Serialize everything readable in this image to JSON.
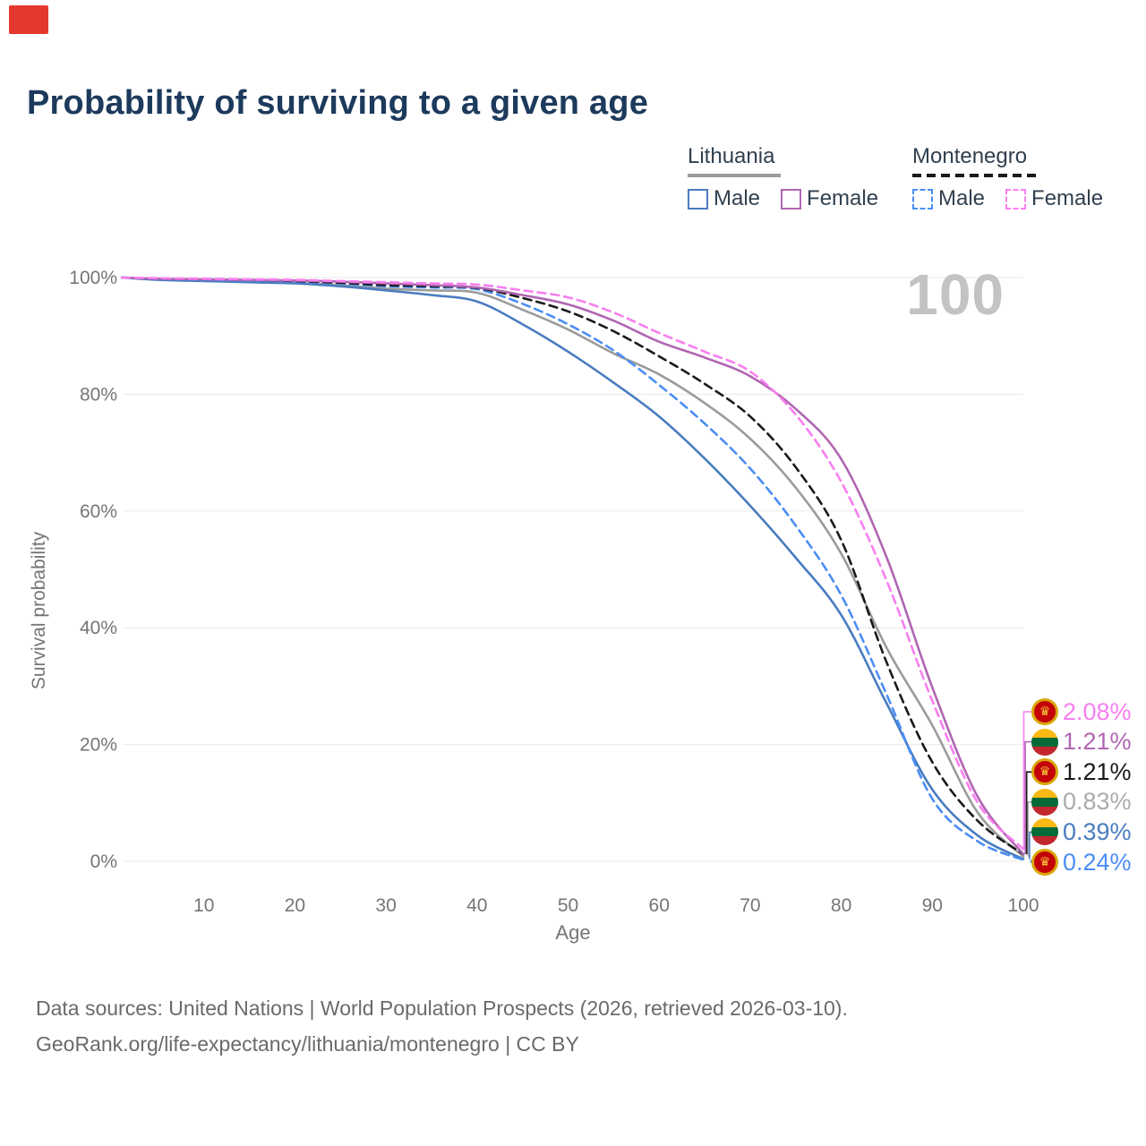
{
  "title": "Probability of surviving to a given age",
  "marker_color": "#e4382e",
  "watermark": "100",
  "legend": {
    "groups": [
      {
        "name": "Lithuania",
        "line_style": "solid",
        "underline_color": "#9b9b9b",
        "items": [
          {
            "label": "Male",
            "color": "#4a7cc0",
            "dashed": false
          },
          {
            "label": "Female",
            "color": "#b066b2",
            "dashed": false
          }
        ]
      },
      {
        "name": "Montenegro",
        "line_style": "dashed",
        "underline_color": "#1a1a1a",
        "items": [
          {
            "label": "Male",
            "color": "#4b8df6",
            "dashed": true
          },
          {
            "label": "Female",
            "color": "#f97ef0",
            "dashed": true
          }
        ]
      }
    ]
  },
  "axes": {
    "y_label": "Survival probability",
    "x_label": "Age",
    "y_ticks": [
      {
        "label": "100%",
        "value": 100
      },
      {
        "label": "80%",
        "value": 80
      },
      {
        "label": "60%",
        "value": 60
      },
      {
        "label": "40%",
        "value": 40
      },
      {
        "label": "20%",
        "value": 20
      },
      {
        "label": "0%",
        "value": 0
      }
    ],
    "x_ticks": [
      {
        "label": "10",
        "value": 10
      },
      {
        "label": "20",
        "value": 20
      },
      {
        "label": "30",
        "value": 30
      },
      {
        "label": "40",
        "value": 40
      },
      {
        "label": "50",
        "value": 50
      },
      {
        "label": "60",
        "value": 60
      },
      {
        "label": "70",
        "value": 70
      },
      {
        "label": "80",
        "value": 80
      },
      {
        "label": "90",
        "value": 90
      },
      {
        "label": "100",
        "value": 100
      }
    ]
  },
  "chart_data": {
    "type": "line",
    "title": "Probability of surviving to a given age",
    "xlabel": "Age",
    "ylabel": "Survival probability",
    "xlim": [
      0,
      100
    ],
    "ylim": [
      0,
      100
    ],
    "grid": "horizontal",
    "legend_position": "top-right",
    "hovered_age": 100,
    "x": [
      1,
      5,
      10,
      15,
      20,
      25,
      30,
      35,
      40,
      45,
      50,
      55,
      60,
      65,
      70,
      75,
      80,
      85,
      90,
      95,
      100
    ],
    "series": [
      {
        "name": "Lithuania Male",
        "color": "#4a7cc0",
        "dash": false,
        "values": [
          100,
          99.6,
          99.4,
          99.2,
          99.0,
          98.5,
          97.8,
          97.0,
          95.9,
          92.0,
          87.3,
          82.0,
          76.2,
          69.0,
          60.9,
          52.0,
          42.2,
          27.0,
          12.3,
          4.4,
          0.39
        ],
        "end_label": "0.39%"
      },
      {
        "name": "Lithuania Female",
        "color": "#b066b2",
        "dash": false,
        "values": [
          100,
          99.8,
          99.7,
          99.6,
          99.5,
          99.3,
          99.0,
          98.7,
          98.3,
          97.0,
          95.4,
          92.6,
          89.0,
          86.3,
          83.1,
          77.5,
          68.9,
          52.0,
          29.8,
          11.0,
          1.21
        ],
        "end_label": "1.21%"
      },
      {
        "name": "Lithuania Both sexes",
        "color": "#9b9b9b",
        "dash": false,
        "values": [
          100,
          99.7,
          99.5,
          99.3,
          99.1,
          98.7,
          98.1,
          97.8,
          97.4,
          94.5,
          91.1,
          87.0,
          83.4,
          78.5,
          72.4,
          64.0,
          52.7,
          36.5,
          23.3,
          8.3,
          0.83
        ],
        "end_label": "0.83%"
      },
      {
        "name": "Montenegro Male",
        "color": "#4b8df6",
        "dash": true,
        "values": [
          100,
          99.8,
          99.6,
          99.5,
          99.3,
          99.0,
          98.5,
          98.3,
          98.0,
          95.5,
          92.0,
          87.5,
          81.6,
          75.0,
          67.3,
          57.5,
          45.6,
          28.5,
          10.7,
          3.4,
          0.24
        ],
        "end_label": "0.24%"
      },
      {
        "name": "Montenegro Female",
        "color": "#f97ef0",
        "dash": true,
        "values": [
          100,
          99.9,
          99.8,
          99.7,
          99.6,
          99.4,
          99.2,
          99.0,
          98.8,
          97.8,
          96.6,
          94.0,
          90.5,
          87.3,
          83.9,
          76.5,
          65.0,
          48.0,
          27.5,
          10.0,
          2.08
        ],
        "end_label": "2.08%"
      },
      {
        "name": "Montenegro Both sexes",
        "color": "#1a1a1a",
        "dash": true,
        "values": [
          100,
          99.8,
          99.7,
          99.6,
          99.4,
          99.1,
          98.7,
          98.5,
          98.2,
          96.5,
          94.2,
          90.8,
          86.5,
          81.8,
          76.2,
          67.5,
          55.0,
          34.0,
          17.0,
          6.9,
          1.21
        ],
        "end_label": "1.21%"
      }
    ]
  },
  "end_labels": [
    {
      "text": "2.08%",
      "color": "#f97ef0",
      "flag": "montenegro",
      "series": "Montenegro Female",
      "end_value": 2.08
    },
    {
      "text": "1.21%",
      "color": "#b066b2",
      "flag": "lithuania",
      "series": "Lithuania Female",
      "end_value": 1.21
    },
    {
      "text": "1.21%",
      "color": "#1a1a1a",
      "flag": "montenegro",
      "series": "Montenegro Both sexes",
      "end_value": 1.21
    },
    {
      "text": "0.83%",
      "color": "#ababab",
      "flag": "lithuania",
      "series": "Lithuania Both sexes",
      "end_value": 0.83
    },
    {
      "text": "0.39%",
      "color": "#4a7cc0",
      "flag": "lithuania",
      "series": "Lithuania Male",
      "end_value": 0.39
    },
    {
      "text": "0.24%",
      "color": "#4b8df6",
      "flag": "montenegro",
      "series": "Montenegro Male",
      "end_value": 0.24
    }
  ],
  "flag_colors": {
    "lithuania_stripes": [
      "#FDB913",
      "#046A38",
      "#C1272D"
    ],
    "montenegro_bg": "#C40308",
    "montenegro_border": "#D8A80A",
    "montenegro_emblem": "#F5C33B"
  },
  "footer": {
    "line1": "Data sources: United Nations | World Population Prospects (2026, retrieved 2026-03-10).",
    "line2": "GeoRank.org/life-expectancy/lithuania/montenegro | CC BY"
  }
}
